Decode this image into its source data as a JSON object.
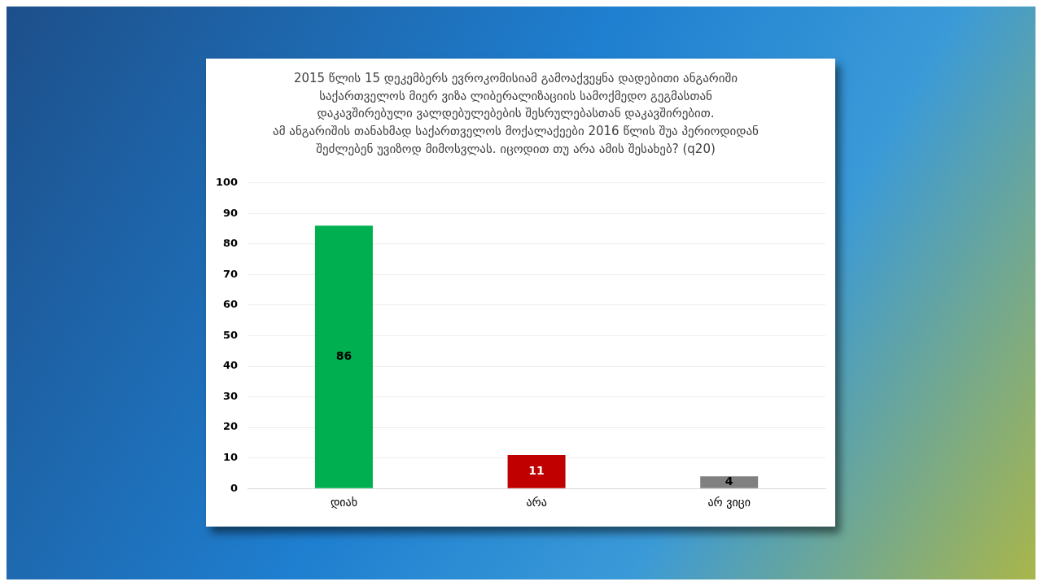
{
  "chart_data": {
    "type": "bar",
    "title": "2015 წლის 15 დეკემბერს ევროკომისიამ გამოაქვეყნა დადებითი ანგარიში\nსაქართველოს მიერ ვიზა ლიბერალიზაციის სამოქმედო გეგმასთან\nდაკავშირებული ვალდებულებების შესრულებასთან დაკავშირებით.\nამ ანგარიშის თანახმად საქართველოს მოქალაქეები 2016 წლის შუა პერიოდიდან\nშეძლებენ უვიზოდ მიმოსვლას. იცოდით თუ არა ამის შესახებ? (q20)",
    "categories": [
      "დიახ",
      "არა",
      "არ ვიცი"
    ],
    "values": [
      86,
      11,
      4
    ],
    "colors": [
      "#00b050",
      "#c00000",
      "#808080"
    ],
    "ylim": [
      0,
      100
    ],
    "yticks": [
      0,
      10,
      20,
      30,
      40,
      50,
      60,
      70,
      80,
      90,
      100
    ],
    "grid": "y",
    "data_labels": true
  }
}
